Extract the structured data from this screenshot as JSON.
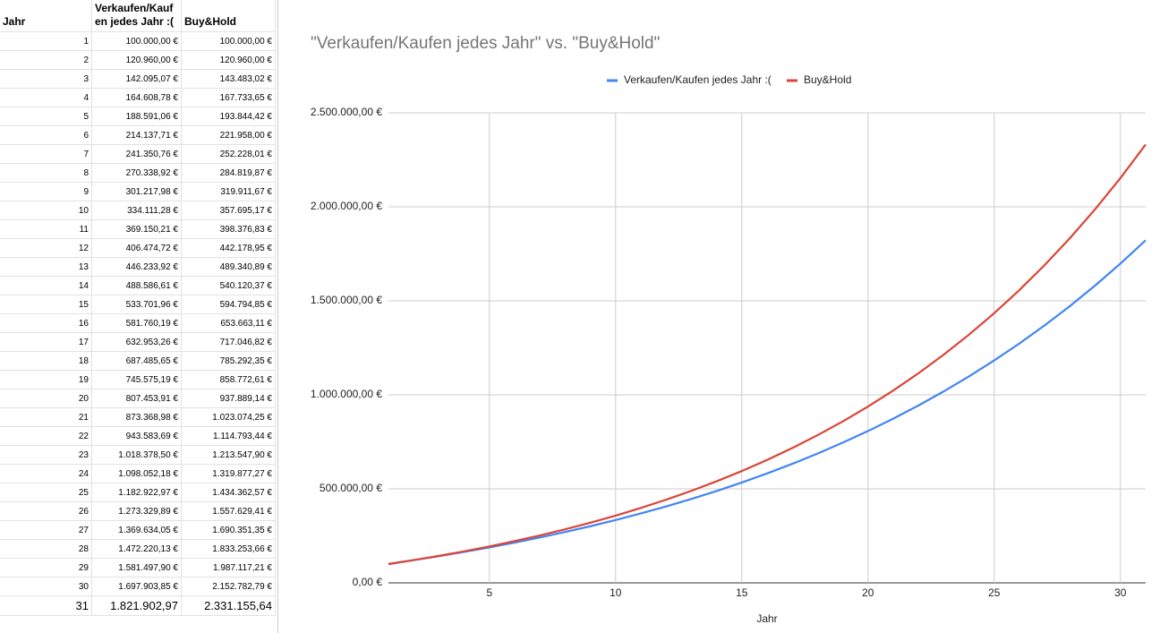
{
  "table": {
    "header": [
      "Jahr",
      "Verkaufen/Kaufen jedes Jahr :(",
      "Buy&Hold"
    ],
    "rows": [
      [
        "1",
        "100.000,00 €",
        "100.000,00 €"
      ],
      [
        "2",
        "120.960,00 €",
        "120.960,00 €"
      ],
      [
        "3",
        "142.095,07 €",
        "143.483,02 €"
      ],
      [
        "4",
        "164.608,78 €",
        "167.733,65 €"
      ],
      [
        "5",
        "188.591,06 €",
        "193.844,42 €"
      ],
      [
        "6",
        "214.137,71 €",
        "221.958,00 €"
      ],
      [
        "7",
        "241.350,76 €",
        "252.228,01 €"
      ],
      [
        "8",
        "270.338,92 €",
        "284.819,87 €"
      ],
      [
        "9",
        "301.217,98 €",
        "319.911,67 €"
      ],
      [
        "10",
        "334.111,28 €",
        "357.695,17 €"
      ],
      [
        "11",
        "369.150,21 €",
        "398.376,83 €"
      ],
      [
        "12",
        "406.474,72 €",
        "442.178,95 €"
      ],
      [
        "13",
        "446.233,92 €",
        "489.340,89 €"
      ],
      [
        "14",
        "488.586,61 €",
        "540.120,37 €"
      ],
      [
        "15",
        "533.701,96 €",
        "594.794,85 €"
      ],
      [
        "16",
        "581.760,19 €",
        "653.663,11 €"
      ],
      [
        "17",
        "632.953,26 €",
        "717.046,82 €"
      ],
      [
        "18",
        "687.485,65 €",
        "785.292,35 €"
      ],
      [
        "19",
        "745.575,19 €",
        "858.772,61 €"
      ],
      [
        "20",
        "807.453,91 €",
        "937.889,14 €"
      ],
      [
        "21",
        "873.368,98 €",
        "1.023.074,25 €"
      ],
      [
        "22",
        "943.583,69 €",
        "1.114.793,44 €"
      ],
      [
        "23",
        "1.018.378,50 €",
        "1.213.547,90 €"
      ],
      [
        "24",
        "1.098.052,18 €",
        "1.319.877,27 €"
      ],
      [
        "25",
        "1.182.922,97 €",
        "1.434.362,57 €"
      ],
      [
        "26",
        "1.273.329,89 €",
        "1.557.629,41 €"
      ],
      [
        "27",
        "1.369.634,05 €",
        "1.690.351,35 €"
      ],
      [
        "28",
        "1.472.220,13 €",
        "1.833.253,66 €"
      ],
      [
        "29",
        "1.581.497,90 €",
        "1.987.117,21 €"
      ],
      [
        "30",
        "1.697.903,85 €",
        "2.152.782,79 €"
      ],
      [
        "31",
        "1.821.902,97",
        "2.331.155,64"
      ]
    ]
  },
  "chart_data": {
    "type": "line",
    "title": "\"Verkaufen/Kaufen jedes Jahr\" vs. \"Buy&Hold\"",
    "x_label": "Jahr",
    "x": [
      1,
      2,
      3,
      4,
      5,
      6,
      7,
      8,
      9,
      10,
      11,
      12,
      13,
      14,
      15,
      16,
      17,
      18,
      19,
      20,
      21,
      22,
      23,
      24,
      25,
      26,
      27,
      28,
      29,
      30,
      31
    ],
    "series": [
      {
        "name": "Verkaufen/Kaufen jedes Jahr :(",
        "color": "#4285f4",
        "values": [
          100000,
          120960,
          142095.07,
          164608.78,
          188591.06,
          214137.71,
          241350.76,
          270338.92,
          301217.98,
          334111.28,
          369150.21,
          406474.72,
          446233.92,
          488586.61,
          533701.96,
          581760.19,
          632953.26,
          687485.65,
          745575.19,
          807453.91,
          873368.98,
          943583.69,
          1018378.5,
          1098052.18,
          1182922.97,
          1273329.89,
          1369634.05,
          1472220.13,
          1581497.9,
          1697903.85,
          1821902.97
        ]
      },
      {
        "name": "Buy&Hold",
        "color": "#db4437",
        "values": [
          100000,
          120960,
          143483.02,
          167733.65,
          193844.42,
          221958.0,
          252228.01,
          284819.87,
          319911.67,
          357695.17,
          398376.83,
          442178.95,
          489340.89,
          540120.37,
          594794.85,
          653663.11,
          717046.82,
          785292.35,
          858772.61,
          937889.14,
          1023074.25,
          1114793.44,
          1213547.9,
          1319877.27,
          1434362.57,
          1557629.41,
          1690351.35,
          1833253.66,
          1987117.21,
          2152782.79,
          2331155.64
        ]
      }
    ],
    "xlim": [
      1,
      31
    ],
    "xticks": [
      5,
      10,
      15,
      20,
      25,
      30
    ],
    "ylim": [
      0,
      2500000
    ],
    "yticks": [
      {
        "value": 0,
        "label": "0,00 €"
      },
      {
        "value": 500000,
        "label": "500.000,00 €"
      },
      {
        "value": 1000000,
        "label": "1.000.000,00 €"
      },
      {
        "value": 1500000,
        "label": "1.500.000,00 €"
      },
      {
        "value": 2000000,
        "label": "2.000.000,00 €"
      },
      {
        "value": 2500000,
        "label": "2.500.000,00 €"
      }
    ],
    "grid": true,
    "legend": "top"
  }
}
